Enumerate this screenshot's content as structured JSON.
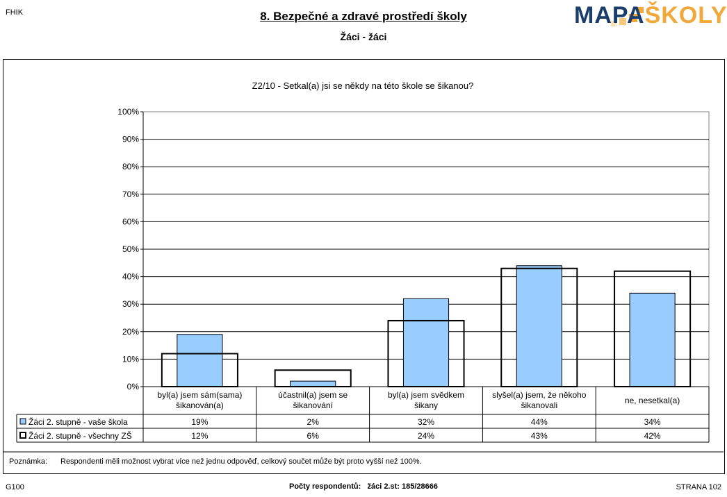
{
  "header": {
    "code": "FHIK",
    "title": "8. Bezpečné a zdravé prostředí školy",
    "subtitle": "Žáci - žáci",
    "logo_left": "MAPA",
    "logo_right": "ŠKOLY"
  },
  "chart_data": {
    "type": "bar",
    "title": "Z2/10 - Setkal(a) jsi se někdy na této škole se šikanou?",
    "categories": [
      [
        "byl(a) jsem sám(sama)",
        "šikanován(a)"
      ],
      [
        "účastnil(a) jsem se",
        "šikanování"
      ],
      [
        "byl(a) jsem svědkem",
        "šikany"
      ],
      [
        "slyšel(a) jsem, že někoho",
        "šikanovali"
      ],
      [
        "ne, nesetkal(a)"
      ]
    ],
    "series": [
      {
        "name": "Žáci 2. stupně - vaše škola",
        "values": [
          19,
          2,
          32,
          44,
          34
        ],
        "labels": [
          "19%",
          "2%",
          "32%",
          "44%",
          "34%"
        ],
        "color": "#99ccff"
      },
      {
        "name": "Žáci 2. stupně - všechny ZŠ",
        "values": [
          12,
          6,
          24,
          43,
          42
        ],
        "labels": [
          "12%",
          "6%",
          "24%",
          "43%",
          "42%"
        ],
        "color": "#ffffff"
      }
    ],
    "yticks": [
      "0%",
      "10%",
      "20%",
      "30%",
      "40%",
      "50%",
      "60%",
      "70%",
      "80%",
      "90%",
      "100%"
    ],
    "ylim": [
      0,
      100
    ],
    "grid": true
  },
  "note": {
    "label": "Poznámka:",
    "text": "Respondenti měli možnost vybrat více než jednu odpověď, celkový součet může být proto vyšší než 100%."
  },
  "footer": {
    "left": "G100",
    "center_label": "Počty respondentů:",
    "center_value": "žáci 2.st: 185/28666",
    "right": "STRANA 102"
  }
}
